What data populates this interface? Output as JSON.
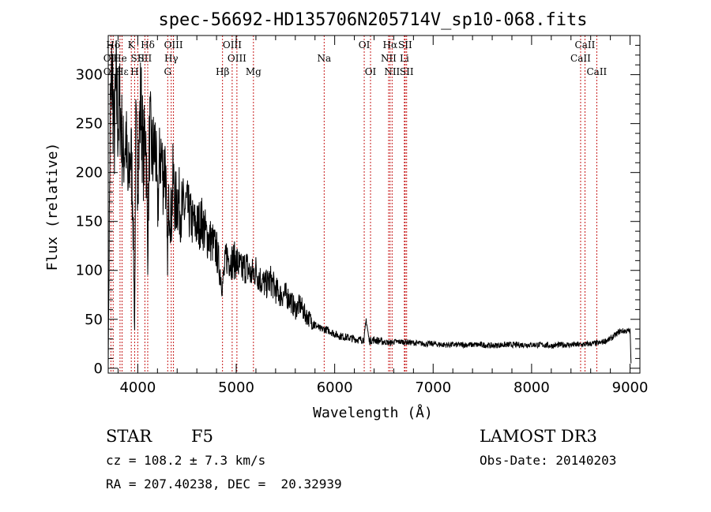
{
  "chart_data": {
    "type": "line",
    "title": "spec-56692-HD135706N205714V_sp10-068.fits",
    "xlabel": "Wavelength (Å)",
    "ylabel": "Flux (relative)",
    "xlim": [
      3700,
      9100
    ],
    "ylim": [
      -5,
      340
    ],
    "xticks": [
      4000,
      5000,
      6000,
      7000,
      8000,
      9000
    ],
    "yticks": [
      0,
      50,
      100,
      150,
      200,
      250,
      300
    ],
    "series": [
      {
        "name": "flux",
        "x": [
          3700,
          3720,
          3740,
          3760,
          3780,
          3800,
          3820,
          3850,
          3880,
          3900,
          3930,
          3950,
          3968,
          3980,
          4000,
          4030,
          4060,
          4080,
          4101,
          4120,
          4150,
          4180,
          4200,
          4230,
          4260,
          4280,
          4300,
          4320,
          4340,
          4360,
          4380,
          4400,
          4450,
          4500,
          4550,
          4600,
          4650,
          4700,
          4750,
          4800,
          4861,
          4900,
          4950,
          5000,
          5050,
          5100,
          5150,
          5200,
          5250,
          5300,
          5350,
          5400,
          5450,
          5500,
          5550,
          5600,
          5650,
          5700,
          5750,
          5800,
          5850,
          5900,
          5950,
          6000,
          6050,
          6100,
          6150,
          6200,
          6250,
          6300,
          6320,
          6350,
          6400,
          6500,
          6563,
          6600,
          6700,
          6800,
          6900,
          7000,
          7100,
          7200,
          7300,
          7400,
          7500,
          7600,
          7700,
          7800,
          7900,
          8000,
          8100,
          8200,
          8300,
          8400,
          8500,
          8600,
          8700,
          8800,
          8900,
          8950,
          9000,
          9010
        ],
        "y": [
          5,
          255,
          305,
          230,
          285,
          250,
          270,
          215,
          240,
          180,
          225,
          170,
          40,
          235,
          200,
          275,
          210,
          255,
          120,
          240,
          215,
          230,
          160,
          225,
          195,
          215,
          110,
          180,
          150,
          195,
          165,
          175,
          160,
          165,
          150,
          145,
          150,
          135,
          130,
          120,
          85,
          115,
          110,
          110,
          100,
          105,
          95,
          100,
          90,
          85,
          90,
          80,
          75,
          75,
          70,
          60,
          65,
          55,
          50,
          45,
          40,
          40,
          38,
          35,
          33,
          32,
          31,
          30,
          29,
          30,
          50,
          28,
          29,
          27,
          26,
          27,
          27,
          26,
          25,
          25,
          24,
          24,
          24,
          24,
          24,
          23,
          24,
          24,
          24,
          24,
          24,
          23,
          24,
          24,
          24,
          25,
          26,
          30,
          38,
          38,
          38,
          5
        ]
      }
    ],
    "line_marks": [
      {
        "label": "Hδ",
        "x": 3750,
        "row": 0
      },
      {
        "label": "OII",
        "x": 3727,
        "row": 1
      },
      {
        "label": "OII",
        "x": 3727,
        "row": 2
      },
      {
        "label": "Hε",
        "x": 3840,
        "row": 2
      },
      {
        "label": "He",
        "x": 3820,
        "row": 1
      },
      {
        "label": "K",
        "x": 3934,
        "row": 0
      },
      {
        "label": "H",
        "x": 3968,
        "row": 2
      },
      {
        "label": "SII",
        "x": 4000,
        "row": 1
      },
      {
        "label": "Hδ",
        "x": 4101,
        "row": 0
      },
      {
        "label": "SII",
        "x": 4072,
        "row": 1
      },
      {
        "label": "OIII",
        "x": 4363,
        "row": 0
      },
      {
        "label": "Hγ",
        "x": 4340,
        "row": 1
      },
      {
        "label": "G",
        "x": 4304,
        "row": 2
      },
      {
        "label": "Hβ",
        "x": 4861,
        "row": 2
      },
      {
        "label": "OIII",
        "x": 4959,
        "row": 0
      },
      {
        "label": "OIII",
        "x": 5007,
        "row": 1
      },
      {
        "label": "Mg",
        "x": 5175,
        "row": 2
      },
      {
        "label": "Na",
        "x": 5893,
        "row": 1
      },
      {
        "label": "OI",
        "x": 6300,
        "row": 0
      },
      {
        "label": "OI",
        "x": 6364,
        "row": 2
      },
      {
        "label": "Hα",
        "x": 6563,
        "row": 0
      },
      {
        "label": "NII",
        "x": 6548,
        "row": 1
      },
      {
        "label": "NII",
        "x": 6583,
        "row": 2
      },
      {
        "label": "SII",
        "x": 6716,
        "row": 0
      },
      {
        "label": "Li",
        "x": 6708,
        "row": 1
      },
      {
        "label": "SII",
        "x": 6731,
        "row": 2
      },
      {
        "label": "CaII",
        "x": 8542,
        "row": 0
      },
      {
        "label": "CaII",
        "x": 8498,
        "row": 1
      },
      {
        "label": "CaII",
        "x": 8662,
        "row": 2
      }
    ]
  },
  "info": {
    "object_class": "STAR",
    "subclass": "F5",
    "survey": "LAMOST DR3",
    "cz": "cz = 108.2 ± 7.3 km/s",
    "obs_date": "Obs-Date: 20140203",
    "coords": "RA = 207.40238, DEC =  20.32939"
  }
}
